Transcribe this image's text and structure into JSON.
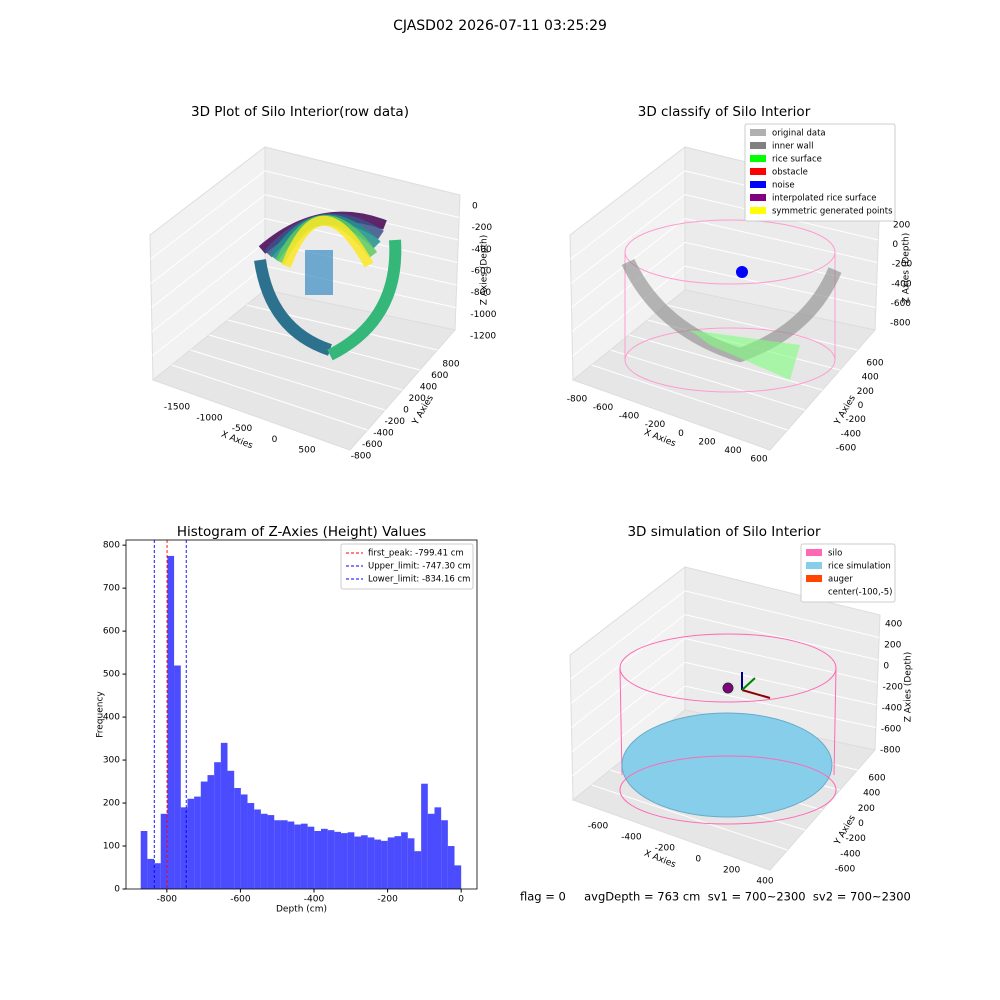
{
  "title": "CJASD02 2026-07-11 03:25:29",
  "chart_data": [
    {
      "type": "scatter3d",
      "title": "3D Plot of Silo Interior(row data)",
      "xlabel": "X Axies",
      "ylabel": "Y Axies",
      "zlabel": "Z Axies (Depth)",
      "xticks": [
        -1500,
        -1000,
        -500,
        0,
        500
      ],
      "yticks": [
        -800,
        -600,
        -400,
        -200,
        0,
        200,
        400,
        600,
        800
      ],
      "zticks": [
        0,
        -200,
        -400,
        -600,
        -800,
        -1000,
        -1200
      ]
    },
    {
      "type": "scatter3d",
      "title": "3D classify of Silo Interior",
      "xlabel": "X Axies",
      "ylabel": "Y Axies",
      "zlabel": "Z Axies (Depth)",
      "xticks": [
        -800,
        -600,
        -400,
        -200,
        0,
        200,
        400,
        600
      ],
      "yticks": [
        -600,
        -400,
        -200,
        0,
        200,
        400,
        600
      ],
      "zticks": [
        200,
        0,
        -200,
        -400,
        -600,
        -800
      ],
      "legend": [
        {
          "name": "original data",
          "color": "#b0b0b0"
        },
        {
          "name": "inner wall",
          "color": "#808080"
        },
        {
          "name": "rice surface",
          "color": "#00ff00"
        },
        {
          "name": "obstacle",
          "color": "#ff0000"
        },
        {
          "name": "noise",
          "color": "#0000ff"
        },
        {
          "name": "interpolated rice surface",
          "color": "#800080"
        },
        {
          "name": "symmetric generated points",
          "color": "#ffff00"
        }
      ]
    },
    {
      "type": "histogram",
      "title": "Histogram of Z-Axies (Height) Values",
      "xlabel": "Depth (cm)",
      "ylabel": "Frequency",
      "color": "#0000ff",
      "bins": [
        -871,
        -852.9,
        -834.7,
        -816.6,
        -798.4,
        -780.3,
        -762.1,
        -744.0,
        -725.8,
        -707.7,
        -689.5,
        -671.4,
        -653.2,
        -635.1,
        -616.9,
        -598.8,
        -580.7,
        -562.5,
        -544.4,
        -526.2,
        -508.1,
        -489.9,
        -471.8,
        -453.6,
        -435.5,
        -417.3,
        -399.2,
        -381.0,
        -362.9,
        -344.7,
        -326.6,
        -308.5,
        -290.3,
        -272.2,
        -254.0,
        -235.9,
        -217.7,
        -199.6,
        -181.4,
        -163.3,
        -145.1,
        -127.0,
        -108.8,
        -90.7,
        -72.5,
        -54.4,
        -36.2,
        -18.1,
        0
      ],
      "counts": [
        135,
        70,
        60,
        175,
        775,
        520,
        190,
        210,
        215,
        250,
        265,
        295,
        340,
        275,
        235,
        220,
        200,
        185,
        175,
        172,
        160,
        160,
        157,
        150,
        152,
        145,
        135,
        140,
        137,
        133,
        130,
        132,
        122,
        125,
        120,
        115,
        112,
        120,
        123,
        132,
        118,
        88,
        245,
        175,
        190,
        160,
        100,
        55
      ],
      "xlim": [
        -911,
        43
      ],
      "ylim": [
        0,
        812
      ],
      "xticks": [
        -800,
        -600,
        -400,
        -200,
        0
      ],
      "yticks": [
        0,
        100,
        200,
        300,
        400,
        500,
        600,
        700,
        800
      ],
      "lines": [
        {
          "name": "first_peak: -799.41 cm",
          "value": -799.41,
          "color": "#ff0000"
        },
        {
          "name": "Upper_limit: -747.30 cm",
          "value": -747.3,
          "color": "#0000ff"
        },
        {
          "name": "Lower_limit: -834.16 cm",
          "value": -834.16,
          "color": "#0000ff"
        }
      ],
      "legend_position": "upper right"
    },
    {
      "type": "surface3d",
      "title": "3D simulation of Silo Interior",
      "xlabel": "X Axies",
      "ylabel": "Y Axies",
      "zlabel": "Z Axies (Depth)",
      "xticks": [
        -600,
        -400,
        -200,
        0,
        200,
        400
      ],
      "yticks": [
        -600,
        -400,
        -200,
        0,
        200,
        400,
        600
      ],
      "zticks": [
        400,
        200,
        0,
        -200,
        -400,
        -600,
        -800
      ],
      "legend": [
        {
          "name": "silo",
          "color": "#ff69b4"
        },
        {
          "name": "rice simulation",
          "color": "#87ceeb"
        },
        {
          "name": "auger",
          "color": "#ff4500"
        },
        {
          "name": "center(-100,-5)",
          "color": "#ffffff"
        }
      ],
      "annotation": "flag = 0     avgDepth = 763 cm  sv1 = 700~2300  sv2 = 700~2300"
    }
  ]
}
